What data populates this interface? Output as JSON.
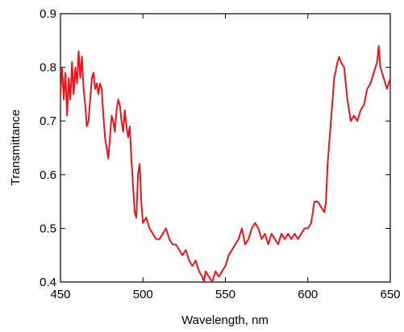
{
  "chart_data": {
    "type": "line",
    "xlabel": "Wavelength, nm",
    "ylabel": "Transmittance",
    "xlim": [
      450,
      650
    ],
    "ylim": [
      0.4,
      0.9
    ],
    "xticks": [
      450,
      500,
      550,
      600,
      650
    ],
    "yticks": [
      0.4,
      0.5,
      0.6,
      0.7,
      0.8,
      0.9
    ],
    "series": [
      {
        "color": "#e8161b",
        "x": [
          450,
          451,
          452,
          453,
          454,
          455,
          456,
          457,
          458,
          459,
          460,
          461,
          462,
          463,
          464,
          465,
          466,
          467,
          468,
          469,
          470,
          471,
          472,
          473,
          474,
          475,
          476,
          477,
          478,
          479,
          480,
          481,
          482,
          483,
          484,
          485,
          486,
          487,
          488,
          489,
          490,
          491,
          492,
          493,
          494,
          495,
          496,
          497,
          498,
          499,
          500,
          502,
          504,
          506,
          508,
          510,
          512,
          514,
          516,
          518,
          520,
          522,
          524,
          526,
          528,
          530,
          532,
          534,
          536,
          537,
          538,
          540,
          542,
          544,
          546,
          548,
          550,
          552,
          554,
          556,
          558,
          560,
          562,
          564,
          566,
          568,
          570,
          572,
          574,
          576,
          578,
          580,
          582,
          584,
          586,
          588,
          590,
          592,
          594,
          596,
          598,
          600,
          602,
          604,
          606,
          608,
          610,
          611,
          612,
          614,
          616,
          618,
          619,
          620,
          622,
          624,
          626,
          628,
          630,
          632,
          634,
          636,
          638,
          640,
          642,
          643,
          644,
          646,
          648,
          650
        ],
        "values": [
          0.75,
          0.8,
          0.74,
          0.79,
          0.71,
          0.78,
          0.74,
          0.81,
          0.75,
          0.8,
          0.77,
          0.83,
          0.78,
          0.82,
          0.76,
          0.73,
          0.69,
          0.7,
          0.74,
          0.78,
          0.79,
          0.76,
          0.77,
          0.75,
          0.77,
          0.76,
          0.71,
          0.67,
          0.65,
          0.63,
          0.67,
          0.71,
          0.7,
          0.68,
          0.72,
          0.74,
          0.73,
          0.7,
          0.68,
          0.72,
          0.69,
          0.67,
          0.69,
          0.63,
          0.58,
          0.53,
          0.52,
          0.6,
          0.62,
          0.55,
          0.51,
          0.52,
          0.5,
          0.49,
          0.48,
          0.48,
          0.49,
          0.5,
          0.48,
          0.47,
          0.47,
          0.46,
          0.45,
          0.46,
          0.44,
          0.43,
          0.44,
          0.42,
          0.41,
          0.4,
          0.42,
          0.41,
          0.4,
          0.42,
          0.41,
          0.42,
          0.43,
          0.45,
          0.46,
          0.47,
          0.48,
          0.5,
          0.47,
          0.48,
          0.5,
          0.51,
          0.5,
          0.48,
          0.49,
          0.47,
          0.49,
          0.48,
          0.47,
          0.49,
          0.48,
          0.49,
          0.48,
          0.49,
          0.48,
          0.49,
          0.5,
          0.5,
          0.51,
          0.55,
          0.55,
          0.54,
          0.53,
          0.55,
          0.62,
          0.7,
          0.78,
          0.81,
          0.82,
          0.81,
          0.8,
          0.74,
          0.7,
          0.71,
          0.7,
          0.72,
          0.73,
          0.76,
          0.77,
          0.79,
          0.81,
          0.84,
          0.8,
          0.78,
          0.76,
          0.78
        ]
      }
    ]
  }
}
